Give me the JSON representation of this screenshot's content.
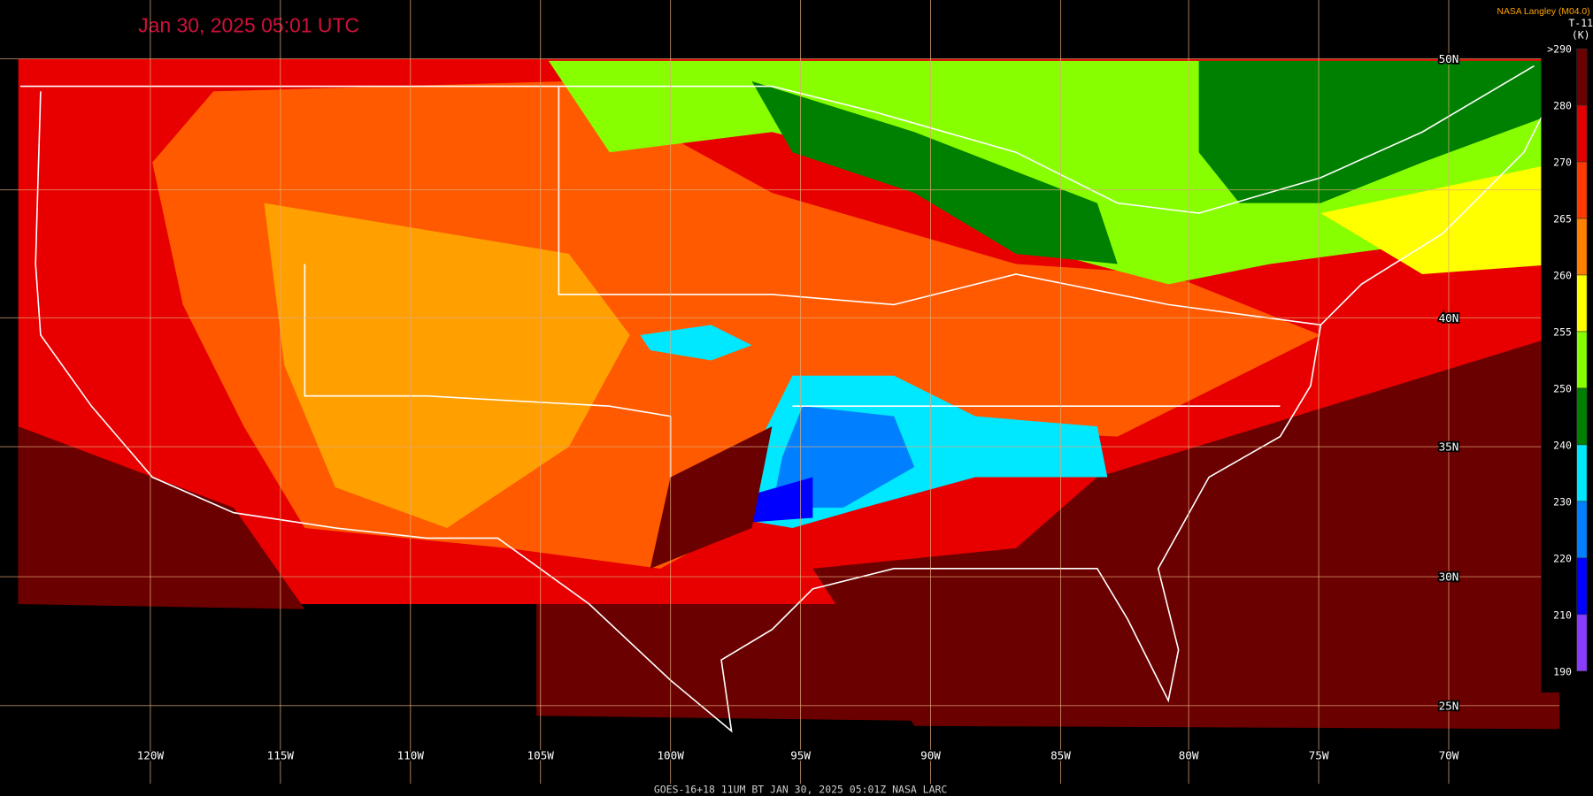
{
  "header": {
    "title": "Jan 30, 2025 05:01 UTC",
    "credit": "NASA Langley (M04.0)"
  },
  "legend": {
    "title": "T-11",
    "unit": "(K)",
    "labels": [
      ">290",
      "280",
      "270",
      "265",
      "260",
      "255",
      "250",
      "240",
      "230",
      "220",
      "210",
      "190"
    ],
    "colors": [
      "#6a0000",
      "#e00000",
      "#ff3a00",
      "#ff8000",
      "#ffff00",
      "#88ff00",
      "#008000",
      "#00e8ff",
      "#0080ff",
      "#0000ff",
      "#8a3cff"
    ]
  },
  "longitude_labels": [
    "120W",
    "115W",
    "110W",
    "105W",
    "100W",
    "95W",
    "90W",
    "85W",
    "80W",
    "75W",
    "70W"
  ],
  "latitude_labels": [
    "50N",
    "40N",
    "35N",
    "30N",
    "25N"
  ],
  "footer": "GOES-16+18  11UM BT  JAN 30, 2025 05:01Z  NASA LARC"
}
